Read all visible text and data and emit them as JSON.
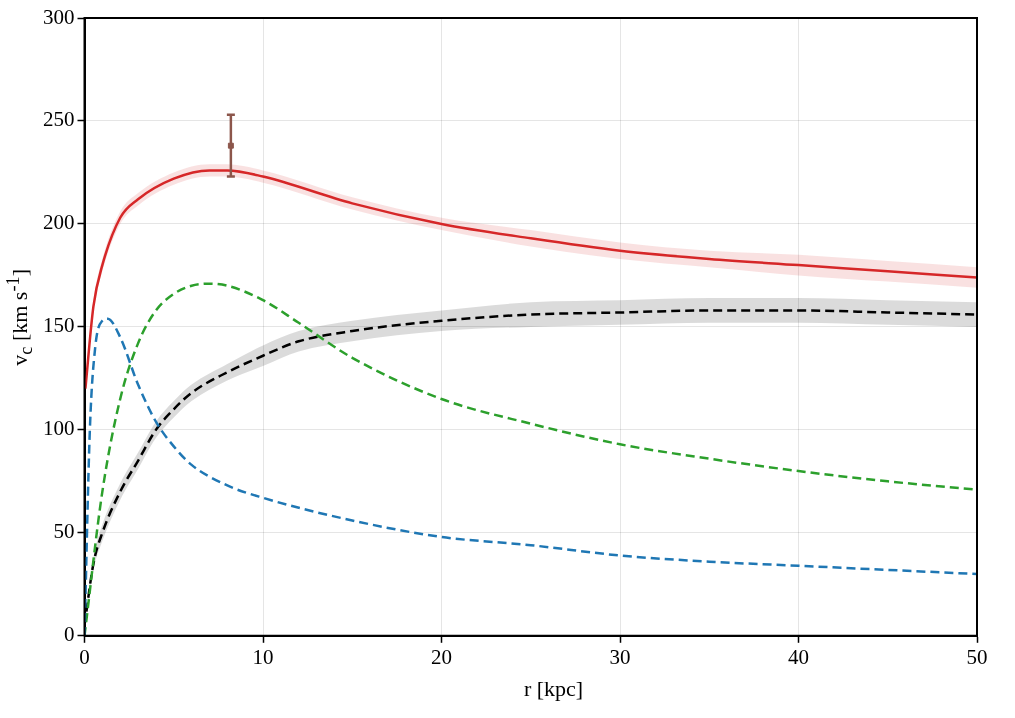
{
  "chart_data": {
    "type": "line",
    "xlabel": "r [kpc]",
    "ylabel": "v$_{c}$ [km s$^{-1}$]",
    "xlim": [
      0,
      50
    ],
    "ylim": [
      0,
      300
    ],
    "xticks": [
      0,
      10,
      20,
      30,
      40,
      50
    ],
    "yticks": [
      0,
      50,
      100,
      150,
      200,
      250,
      300
    ],
    "grid": true,
    "legend": false,
    "marker": "none",
    "series": [
      {
        "color": "#d62728",
        "line_style": "solid",
        "x": [
          0.05,
          0.5,
          1,
          2,
          3,
          5,
          7,
          8,
          10,
          15,
          20,
          25,
          30,
          35,
          40,
          45,
          50
        ],
        "values": [
          120,
          160,
          180,
          203,
          212,
          222,
          226,
          226,
          223,
          210,
          200,
          193,
          187,
          183,
          180,
          177,
          174
        ],
        "lower": [
          116,
          157,
          177,
          200,
          209,
          219,
          223,
          223,
          220,
          207,
          197,
          189,
          183,
          179,
          175,
          172,
          169
        ],
        "upper": [
          124,
          163,
          183,
          206,
          215,
          225,
          229,
          229,
          226,
          213,
          203,
          197,
          191,
          187,
          185,
          182,
          179
        ]
      },
      {
        "color": "#1f77b4",
        "line_style": "dashed",
        "x": [
          0,
          0.3,
          0.6,
          1,
          1.3,
          2,
          3,
          4,
          5,
          6,
          8,
          10,
          15,
          20,
          25,
          30,
          35,
          40,
          45,
          50
        ],
        "values": [
          0,
          100,
          140,
          153,
          154,
          145,
          122,
          104,
          92,
          83,
          73,
          67,
          56,
          48,
          44,
          39,
          36,
          34,
          32,
          30
        ]
      },
      {
        "color": "#2ca02c",
        "line_style": "dashed",
        "x": [
          0,
          1,
          2,
          3,
          4,
          5,
          6,
          7,
          8,
          10,
          12,
          15,
          20,
          25,
          30,
          35,
          40,
          45,
          50
        ],
        "values": [
          0,
          70,
          115,
          142,
          158,
          166,
          170,
          171,
          170,
          163,
          152,
          135,
          115,
          103,
          93,
          86,
          80,
          75,
          71
        ]
      },
      {
        "color": "#000000",
        "line_style": "dashed",
        "x": [
          0,
          0.5,
          1,
          2,
          3,
          4,
          5,
          6,
          8,
          10,
          12,
          15,
          20,
          25,
          30,
          35,
          40,
          45,
          50
        ],
        "values": [
          5,
          35,
          50,
          70,
          85,
          100,
          110,
          118,
          128,
          136,
          143,
          148,
          153,
          156,
          157,
          158,
          158,
          157,
          156
        ],
        "lower": [
          4,
          32,
          46,
          66,
          81,
          96,
          106,
          114,
          124,
          131,
          138,
          143,
          148,
          150,
          151,
          152,
          152,
          151,
          150
        ],
        "upper": [
          6,
          38,
          54,
          74,
          89,
          104,
          114,
          122,
          132,
          141,
          148,
          153,
          158,
          162,
          163,
          164,
          164,
          163,
          162
        ]
      },
      {
        "type": "scatter",
        "color": "#8c564b",
        "marker": "square",
        "x": [
          8.2
        ],
        "values": [
          238
        ],
        "errors": [
          15
        ]
      }
    ]
  }
}
